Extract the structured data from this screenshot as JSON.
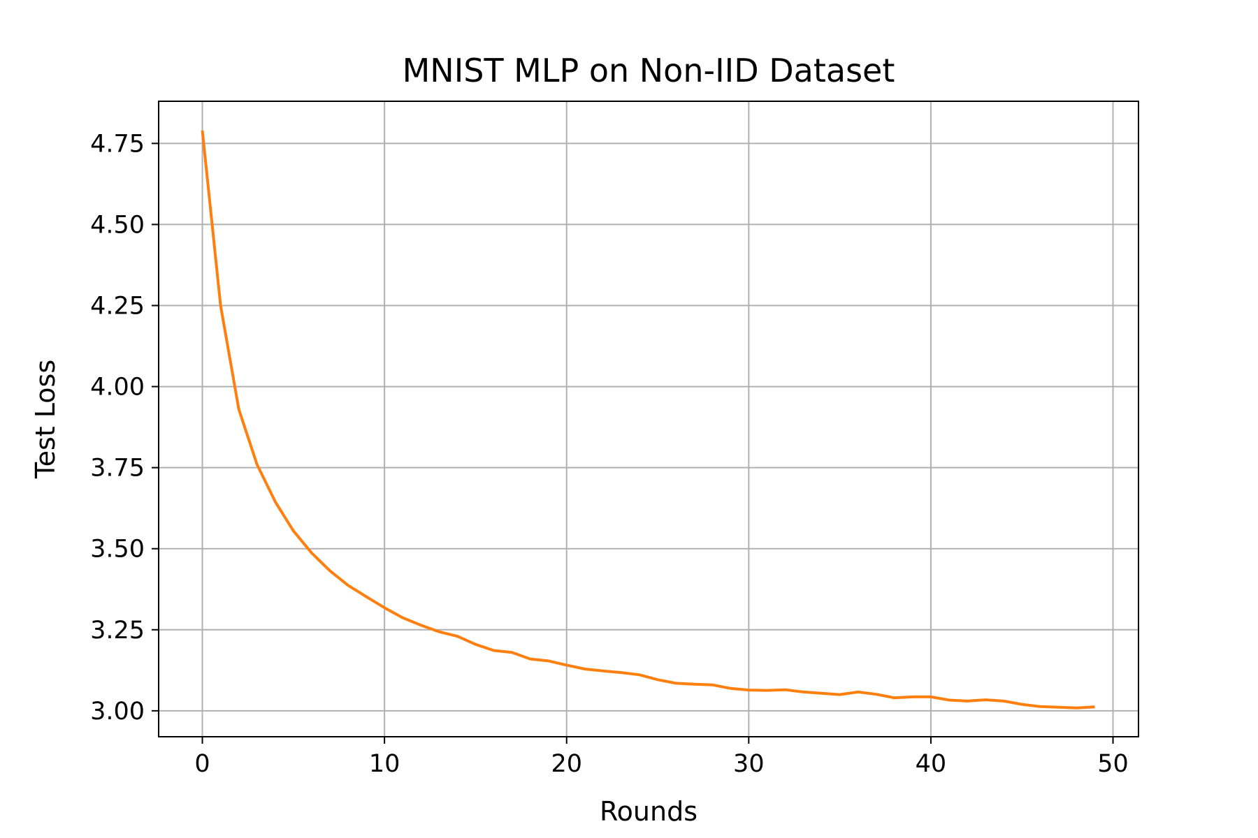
{
  "chart_data": {
    "type": "line",
    "title": "MNIST MLP on Non-IID Dataset",
    "xlabel": "Rounds",
    "ylabel": "Test Loss",
    "xlim": [
      -2.4,
      51.4
    ],
    "ylim": [
      2.92,
      4.88
    ],
    "grid": true,
    "legend": "none",
    "xticks": [
      0,
      10,
      20,
      30,
      40,
      50
    ],
    "xtick_labels": [
      "0",
      "10",
      "20",
      "30",
      "40",
      "50"
    ],
    "yticks": [
      3.0,
      3.25,
      3.5,
      3.75,
      4.0,
      4.25,
      4.5,
      4.75
    ],
    "ytick_labels": [
      "3.00",
      "3.25",
      "3.50",
      "3.75",
      "4.00",
      "4.25",
      "4.50",
      "4.75"
    ],
    "series": [
      {
        "color": "#ff7f0e",
        "x": [
          0,
          1,
          2,
          3,
          4,
          5,
          6,
          7,
          8,
          9,
          10,
          11,
          12,
          13,
          14,
          15,
          16,
          17,
          18,
          19,
          20,
          21,
          22,
          23,
          24,
          25,
          26,
          27,
          28,
          29,
          30,
          31,
          32,
          33,
          34,
          35,
          36,
          37,
          38,
          39,
          40,
          41,
          42,
          43,
          44,
          45,
          46,
          47,
          48,
          49
        ],
        "values": [
          4.79,
          4.25,
          3.93,
          3.76,
          3.645,
          3.555,
          3.487,
          3.432,
          3.387,
          3.352,
          3.318,
          3.287,
          3.264,
          3.244,
          3.23,
          3.205,
          3.186,
          3.18,
          3.16,
          3.154,
          3.141,
          3.129,
          3.123,
          3.118,
          3.111,
          3.096,
          3.085,
          3.082,
          3.08,
          3.069,
          3.064,
          3.063,
          3.065,
          3.058,
          3.054,
          3.05,
          3.058,
          3.051,
          3.04,
          3.043,
          3.043,
          3.033,
          3.03,
          3.034,
          3.03,
          3.02,
          3.013,
          3.011,
          3.009,
          3.012
        ]
      }
    ],
    "colors": {
      "grid": "#b0b0b0",
      "axes": "#000000",
      "line": "#ff7f0e"
    }
  }
}
